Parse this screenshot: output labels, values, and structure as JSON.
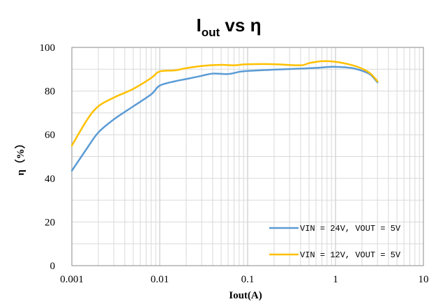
{
  "chart_data": {
    "type": "line",
    "title": {
      "main": "I",
      "sub": "out",
      "rest": " vs η"
    },
    "xlabel": "Iout(A)",
    "ylabel": "η（%）",
    "x_scale": "log",
    "xlim": [
      0.001,
      10
    ],
    "ylim": [
      0,
      100
    ],
    "x_ticks": [
      {
        "value": 0.001,
        "label": "0.001"
      },
      {
        "value": 0.01,
        "label": "0.01"
      },
      {
        "value": 0.1,
        "label": "0.1"
      },
      {
        "value": 1,
        "label": "1"
      },
      {
        "value": 10,
        "label": "10"
      }
    ],
    "y_ticks": [
      {
        "value": 0,
        "label": "0"
      },
      {
        "value": 20,
        "label": "20"
      },
      {
        "value": 40,
        "label": "40"
      },
      {
        "value": 60,
        "label": "60"
      },
      {
        "value": 80,
        "label": "80"
      },
      {
        "value": 100,
        "label": "100"
      }
    ],
    "grid": true,
    "legend_position": "bottom-right",
    "series": [
      {
        "name": "VIN = 24V, VOUT = 5V",
        "color": "#5b9bd5",
        "points": [
          [
            0.001,
            43.5
          ],
          [
            0.0015,
            54
          ],
          [
            0.002,
            61
          ],
          [
            0.003,
            67
          ],
          [
            0.005,
            73
          ],
          [
            0.008,
            78.5
          ],
          [
            0.01,
            82.5
          ],
          [
            0.015,
            84.5
          ],
          [
            0.02,
            85.5
          ],
          [
            0.03,
            87
          ],
          [
            0.04,
            88
          ],
          [
            0.06,
            87.8
          ],
          [
            0.08,
            88.8
          ],
          [
            0.1,
            89.2
          ],
          [
            0.2,
            89.8
          ],
          [
            0.4,
            90.3
          ],
          [
            0.6,
            90.6
          ],
          [
            0.8,
            91
          ],
          [
            1,
            91.1
          ],
          [
            1.5,
            90.6
          ],
          [
            2,
            89.3
          ],
          [
            2.5,
            87.5
          ],
          [
            3,
            84
          ]
        ]
      },
      {
        "name": "VIN = 12V, VOUT = 5V",
        "color": "#ffc000",
        "points": [
          [
            0.001,
            55
          ],
          [
            0.0015,
            67
          ],
          [
            0.002,
            73
          ],
          [
            0.003,
            77
          ],
          [
            0.005,
            81
          ],
          [
            0.008,
            86
          ],
          [
            0.01,
            89
          ],
          [
            0.015,
            89.5
          ],
          [
            0.02,
            90.5
          ],
          [
            0.03,
            91.5
          ],
          [
            0.05,
            92
          ],
          [
            0.07,
            91.8
          ],
          [
            0.1,
            92.3
          ],
          [
            0.2,
            92.3
          ],
          [
            0.4,
            91.8
          ],
          [
            0.5,
            92.8
          ],
          [
            0.7,
            93.7
          ],
          [
            1,
            93.4
          ],
          [
            1.5,
            92
          ],
          [
            2,
            90.3
          ],
          [
            2.5,
            88
          ],
          [
            3,
            84.5
          ]
        ]
      }
    ]
  }
}
